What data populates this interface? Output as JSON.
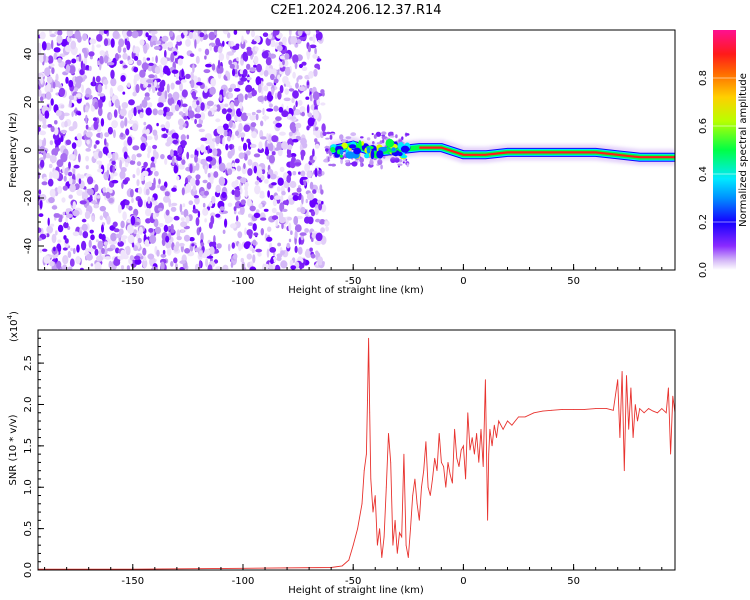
{
  "title": "C2E1.2024.206.12.37.R14",
  "chart_data": [
    {
      "type": "heatmap",
      "xlabel": "Height of straight line (km)",
      "ylabel": "Frequency (Hz)",
      "xlim": [
        -193,
        96
      ],
      "ylim": [
        -50,
        50
      ],
      "x_ticks": [
        -150,
        -100,
        -50,
        0,
        50
      ],
      "x_tick_labels": [
        "-150",
        "-100",
        "-50",
        "0",
        "50"
      ],
      "y_ticks": [
        -40,
        -20,
        0,
        20,
        40
      ],
      "y_tick_labels": [
        "-40",
        "-20",
        "0",
        "20",
        "40"
      ],
      "colorbar": {
        "label": "Normalized spectral amplitude",
        "ticks": [
          0.0,
          0.2,
          0.4,
          0.6,
          0.8
        ],
        "tick_labels": [
          "0.0",
          "0.2",
          "0.4",
          "0.6",
          "0.8"
        ],
        "range": [
          0,
          1
        ],
        "colormap": [
          "#ffffff",
          "#c9a6f5",
          "#6a00ff",
          "#0000ff",
          "#00e5ff",
          "#00ff3a",
          "#d7ff00",
          "#ff9a00",
          "#ff1a1a",
          "#ff1090"
        ]
      },
      "noise_region_x": [
        -193,
        -63
      ],
      "transition_x": [
        -63,
        -25
      ],
      "signal_line": {
        "x": [
          -60,
          -50,
          -40,
          -30,
          -20,
          -10,
          0,
          10,
          20,
          40,
          60,
          70,
          80,
          96
        ],
        "y": [
          0,
          2,
          -1,
          0,
          1,
          1,
          -2,
          -2,
          -1,
          -1,
          -1,
          -2,
          -3,
          -3
        ]
      }
    },
    {
      "type": "line",
      "xlabel": "Height of straight line (km)",
      "ylabel": "SNR (10 * v/v)",
      "scale_label": "(x10",
      "scale_exponent": "4",
      "xlim": [
        -193,
        96
      ],
      "ylim": [
        0,
        2.9
      ],
      "x_ticks": [
        -150,
        -100,
        -50,
        0,
        50
      ],
      "x_tick_labels": [
        "-150",
        "-100",
        "-50",
        "0",
        "50"
      ],
      "y_ticks": [
        0.0,
        0.5,
        1.0,
        1.5,
        2.0,
        2.5
      ],
      "y_tick_labels": [
        "0.0",
        "0.5",
        "1.0",
        "1.5",
        "2.0",
        "2.5"
      ],
      "color": "#e8322e",
      "x": [
        -193,
        -150,
        -100,
        -60,
        -55,
        -52,
        -50,
        -48,
        -46,
        -45,
        -44,
        -43.5,
        -43,
        -42.5,
        -42,
        -41,
        -40,
        -39,
        -38,
        -37,
        -36,
        -35,
        -34,
        -33,
        -32,
        -31,
        -30,
        -29,
        -28,
        -27,
        -26,
        -25,
        -24,
        -23,
        -22,
        -21,
        -20,
        -19,
        -18,
        -17,
        -16,
        -15,
        -14,
        -13,
        -12,
        -11,
        -10,
        -9,
        -8,
        -7,
        -6,
        -5,
        -4,
        -3,
        -2,
        -1,
        0,
        1,
        2,
        3,
        4,
        5,
        6,
        7,
        8,
        9,
        10,
        11,
        11.5,
        12,
        13,
        14,
        15,
        16,
        18,
        20,
        22,
        25,
        28,
        32,
        36,
        40,
        45,
        50,
        55,
        60,
        65,
        68,
        70,
        71,
        72,
        73,
        74,
        75,
        76,
        77,
        78,
        79,
        80,
        82,
        84,
        86,
        88,
        90,
        92,
        93,
        94,
        95,
        96
      ],
      "y": [
        0.01,
        0.01,
        0.02,
        0.03,
        0.05,
        0.12,
        0.3,
        0.5,
        0.8,
        1.2,
        1.4,
        2.05,
        2.8,
        1.9,
        1.1,
        0.7,
        0.9,
        0.3,
        0.5,
        0.15,
        0.4,
        1.0,
        1.65,
        1.3,
        0.3,
        0.6,
        0.2,
        0.45,
        0.4,
        1.4,
        0.3,
        0.15,
        0.5,
        0.9,
        1.1,
        0.8,
        0.6,
        1.0,
        1.2,
        1.55,
        1.0,
        0.9,
        1.1,
        1.35,
        1.2,
        1.65,
        1.3,
        1.25,
        1.0,
        1.3,
        1.15,
        1.05,
        1.7,
        1.35,
        1.25,
        1.45,
        1.5,
        1.1,
        1.9,
        1.45,
        1.6,
        1.4,
        1.65,
        1.3,
        1.7,
        1.25,
        2.3,
        0.6,
        1.4,
        1.7,
        1.5,
        1.75,
        1.6,
        1.8,
        1.7,
        1.8,
        1.75,
        1.85,
        1.85,
        1.9,
        1.92,
        1.93,
        1.94,
        1.94,
        1.94,
        1.95,
        1.95,
        1.93,
        2.3,
        1.6,
        2.4,
        1.2,
        2.35,
        1.7,
        2.2,
        1.6,
        2.0,
        1.8,
        1.95,
        1.9,
        1.95,
        1.92,
        1.9,
        1.95,
        1.9,
        2.2,
        1.4,
        2.1,
        1.9
      ]
    }
  ]
}
